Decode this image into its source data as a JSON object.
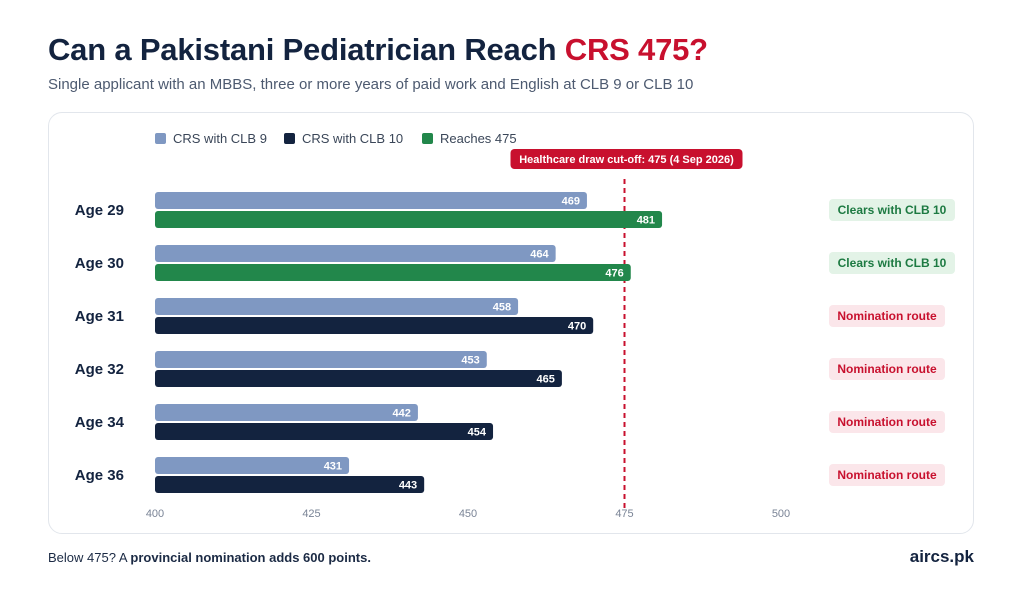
{
  "header": {
    "title_main": "Can a Pakistani Pediatrician Reach ",
    "title_accent": "CRS 475?",
    "subtitle": "Single applicant with an MBBS, three or more years of paid work and English at CLB 9 or CLB 10"
  },
  "colors": {
    "clb9": "#7f98c2",
    "clb10": "#13233f",
    "reaches": "#22874b",
    "cutoff": "#c8102e",
    "badge_clear_bg": "#e3f3e7",
    "badge_clear_text": "#1d7a42",
    "badge_nom_bg": "#fbe6ea",
    "badge_nom_text": "#c8102e"
  },
  "chart_data": {
    "type": "bar",
    "orientation": "horizontal",
    "categories": [
      "Age 29",
      "Age 30",
      "Age 31",
      "Age 32",
      "Age 34",
      "Age 36"
    ],
    "series": [
      {
        "name": "CRS with CLB 9",
        "values": [
          469,
          464,
          458,
          453,
          442,
          431
        ]
      },
      {
        "name": "CRS with CLB 10",
        "values": [
          481,
          476,
          470,
          465,
          454,
          443
        ]
      }
    ],
    "legend": [
      "CRS with CLB 9",
      "CRS with CLB 10",
      "Reaches 475"
    ],
    "legend_position": "top-left",
    "threshold": 475,
    "threshold_label": "Healthcare draw cut-off: 475 (4 Sep 2026)",
    "xlim": [
      400,
      500
    ],
    "xticks": [
      400,
      425,
      450,
      475,
      500
    ],
    "grid": false,
    "outcomes": [
      "Clears with CLB 10",
      "Clears with CLB 10",
      "Nomination route",
      "Nomination route",
      "Nomination route",
      "Nomination route"
    ]
  },
  "footer": {
    "note_prefix": "Below 475? A ",
    "note_bold": "provincial nomination adds 600 points.",
    "brand": "aircs.pk"
  }
}
